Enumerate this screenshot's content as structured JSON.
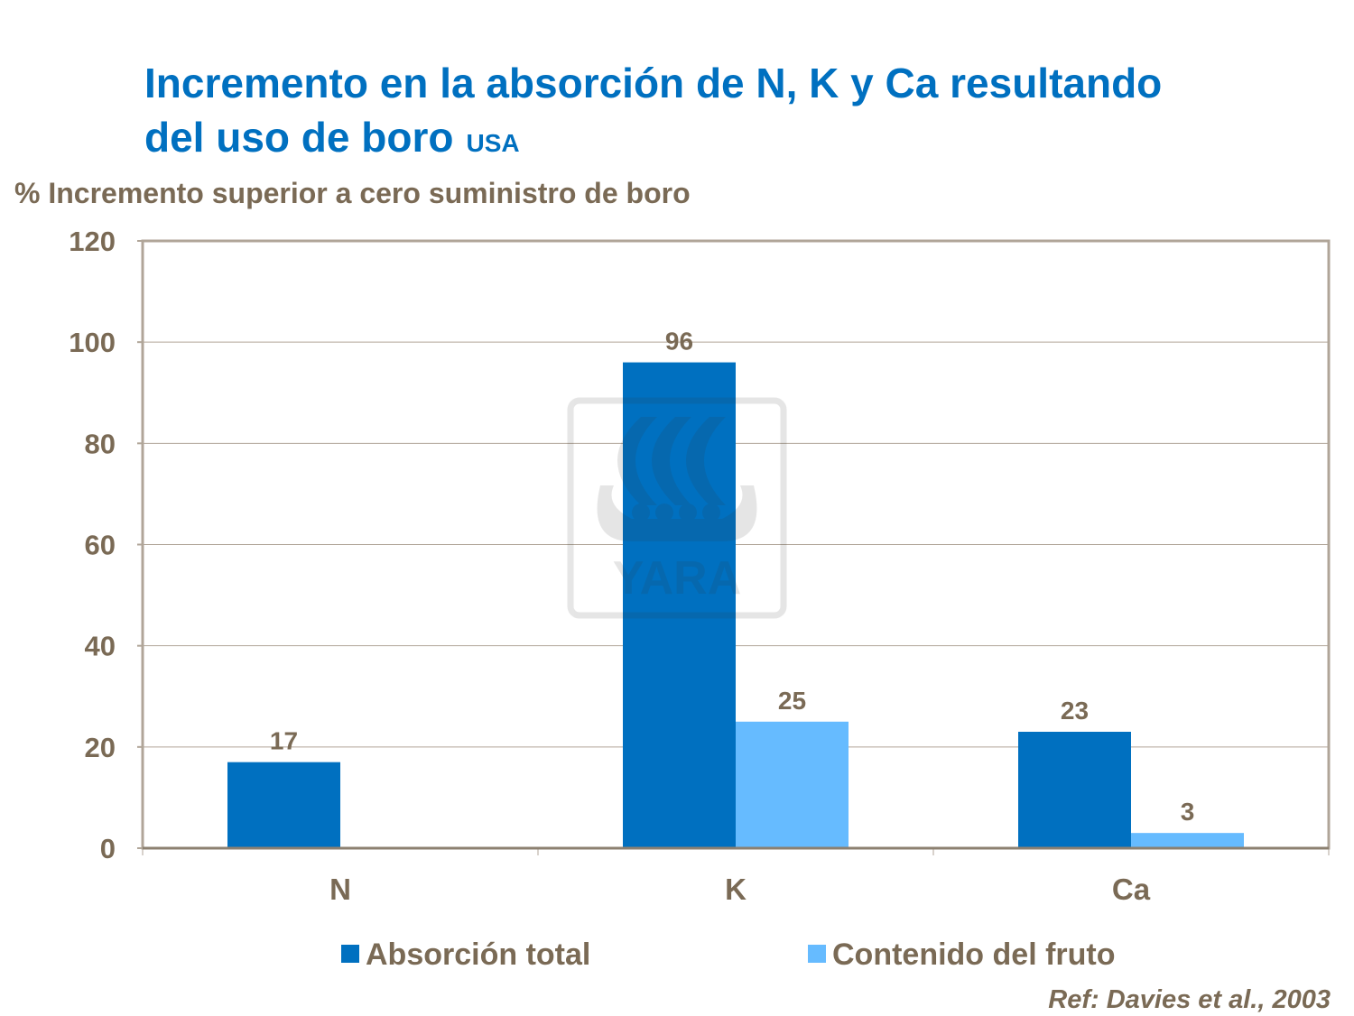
{
  "title": "Incremento en la absorción de N, K y Ca resultando del uso de boro",
  "title_line1": "Incremento en la absorción de N, K y Ca resultando",
  "title_line2": "del uso de boro",
  "subtitle": "USA",
  "reference": "Ref: Davies et al., 2003",
  "watermark": "YARA",
  "chart_data": {
    "type": "bar",
    "ylabel": "% Incremento superior a cero suministro de boro",
    "categories": [
      "N",
      "K",
      "Ca"
    ],
    "ylim": [
      0,
      120
    ],
    "yticks": [
      0,
      20,
      40,
      60,
      80,
      100,
      120
    ],
    "grid": true,
    "legend_position": "bottom",
    "series": [
      {
        "name": "Absorción total",
        "values": [
          17,
          96,
          23
        ],
        "color": "#0070C0"
      },
      {
        "name": "Contenido del fruto",
        "values": [
          null,
          25,
          3
        ],
        "color": "#66BBFF"
      }
    ]
  }
}
